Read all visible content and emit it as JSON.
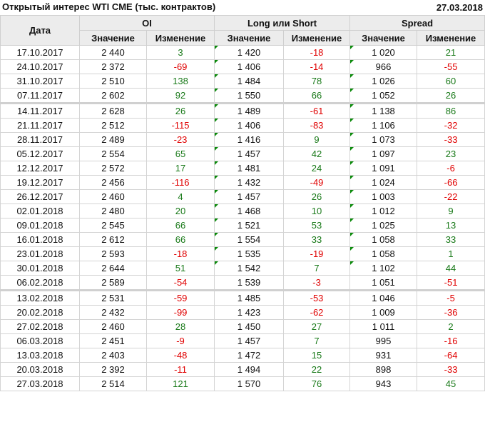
{
  "title": "Открытый интерес WTI CME (тыс. контрактов)",
  "date": "27.03.2018",
  "colors": {
    "positive": "#1a7a1a",
    "negative": "#e00000",
    "header_bg": "#ececec",
    "comment_marker": "#0a8a0a"
  },
  "headers": {
    "date": "Дата",
    "groups": [
      "OI",
      "Long или Short",
      "Spread"
    ],
    "sub": [
      "Значение",
      "Изменение",
      "Значение",
      "Изменение",
      "Значение",
      "Изменение"
    ]
  },
  "rows": [
    {
      "date": "17.10.2017",
      "v": [
        "2 440",
        "3",
        "1 420",
        "-18",
        "1 020",
        "21"
      ],
      "marker": true
    },
    {
      "date": "24.10.2017",
      "v": [
        "2 372",
        "-69",
        "1 406",
        "-14",
        "966",
        "-55"
      ],
      "marker": true
    },
    {
      "date": "31.10.2017",
      "v": [
        "2 510",
        "138",
        "1 484",
        "78",
        "1 026",
        "60"
      ],
      "marker": true
    },
    {
      "date": "07.11.2017",
      "v": [
        "2 602",
        "92",
        "1 550",
        "66",
        "1 052",
        "26"
      ],
      "marker": true
    },
    {
      "date": "14.11.2017",
      "v": [
        "2 628",
        "26",
        "1 489",
        "-61",
        "1 138",
        "86"
      ],
      "marker": true,
      "sep": true
    },
    {
      "date": "21.11.2017",
      "v": [
        "2 512",
        "-115",
        "1 406",
        "-83",
        "1 106",
        "-32"
      ],
      "marker": true
    },
    {
      "date": "28.11.2017",
      "v": [
        "2 489",
        "-23",
        "1 416",
        "9",
        "1 073",
        "-33"
      ],
      "marker": true
    },
    {
      "date": "05.12.2017",
      "v": [
        "2 554",
        "65",
        "1 457",
        "42",
        "1 097",
        "23"
      ],
      "marker": true
    },
    {
      "date": "12.12.2017",
      "v": [
        "2 572",
        "17",
        "1 481",
        "24",
        "1 091",
        "-6"
      ],
      "marker": true
    },
    {
      "date": "19.12.2017",
      "v": [
        "2 456",
        "-116",
        "1 432",
        "-49",
        "1 024",
        "-66"
      ],
      "marker": true
    },
    {
      "date": "26.12.2017",
      "v": [
        "2 460",
        "4",
        "1 457",
        "26",
        "1 003",
        "-22"
      ],
      "marker": true
    },
    {
      "date": "02.01.2018",
      "v": [
        "2 480",
        "20",
        "1 468",
        "10",
        "1 012",
        "9"
      ],
      "marker": true
    },
    {
      "date": "09.01.2018",
      "v": [
        "2 545",
        "66",
        "1 521",
        "53",
        "1 025",
        "13"
      ],
      "marker": true
    },
    {
      "date": "16.01.2018",
      "v": [
        "2 612",
        "66",
        "1 554",
        "33",
        "1 058",
        "33"
      ],
      "marker": true
    },
    {
      "date": "23.01.2018",
      "v": [
        "2 593",
        "-18",
        "1 535",
        "-19",
        "1 058",
        "1"
      ],
      "marker": true
    },
    {
      "date": "30.01.2018",
      "v": [
        "2 644",
        "51",
        "1 542",
        "7",
        "1 102",
        "44"
      ],
      "marker": true
    },
    {
      "date": "06.02.2018",
      "v": [
        "2 589",
        "-54",
        "1 539",
        "-3",
        "1 051",
        "-51"
      ],
      "marker": false
    },
    {
      "date": "13.02.2018",
      "v": [
        "2 531",
        "-59",
        "1 485",
        "-53",
        "1 046",
        "-5"
      ],
      "marker": false,
      "sep": true
    },
    {
      "date": "20.02.2018",
      "v": [
        "2 432",
        "-99",
        "1 423",
        "-62",
        "1 009",
        "-36"
      ],
      "marker": false
    },
    {
      "date": "27.02.2018",
      "v": [
        "2 460",
        "28",
        "1 450",
        "27",
        "1 011",
        "2"
      ],
      "marker": false
    },
    {
      "date": "06.03.2018",
      "v": [
        "2 451",
        "-9",
        "1 457",
        "7",
        "995",
        "-16"
      ],
      "marker": false
    },
    {
      "date": "13.03.2018",
      "v": [
        "2 403",
        "-48",
        "1 472",
        "15",
        "931",
        "-64"
      ],
      "marker": false
    },
    {
      "date": "20.03.2018",
      "v": [
        "2 392",
        "-11",
        "1 494",
        "22",
        "898",
        "-33"
      ],
      "marker": false
    },
    {
      "date": "27.03.2018",
      "v": [
        "2 514",
        "121",
        "1 570",
        "76",
        "943",
        "45"
      ],
      "marker": false
    }
  ]
}
